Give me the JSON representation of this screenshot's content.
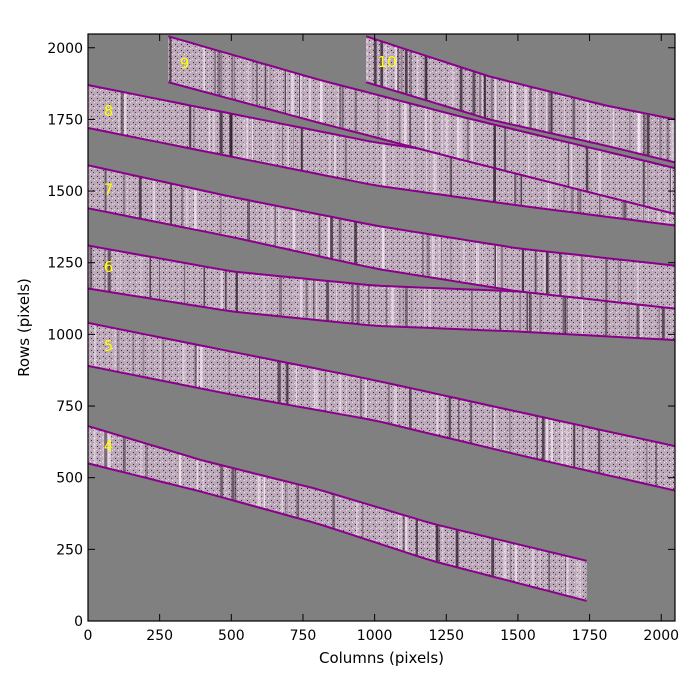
{
  "chart_data": {
    "type": "image",
    "title": "",
    "xlabel": "Columns (pixels)",
    "ylabel": "Rows (pixels)",
    "xlim": [
      0,
      2048
    ],
    "ylim": [
      0,
      2048
    ],
    "xticks": [
      0,
      250,
      500,
      750,
      1000,
      1250,
      1500,
      1750,
      2000
    ],
    "yticks": [
      0,
      250,
      500,
      750,
      1000,
      1250,
      1500,
      1750,
      2000
    ],
    "grid": false,
    "background_color": "#808080",
    "outline_color": "#8B008B",
    "label_color": "#FFFF00",
    "orders": [
      {
        "label": "4",
        "x_range": [
          0,
          1740
        ],
        "lower_edge": [
          [
            0,
            550
          ],
          [
            400,
            450
          ],
          [
            800,
            340
          ],
          [
            1200,
            210
          ],
          [
            1740,
            70
          ]
        ],
        "upper_edge": [
          [
            0,
            680
          ],
          [
            400,
            560
          ],
          [
            800,
            460
          ],
          [
            1200,
            340
          ],
          [
            1740,
            210
          ]
        ],
        "label_pos": [
          55,
          610
        ]
      },
      {
        "label": "5",
        "x_range": [
          0,
          2048
        ],
        "lower_edge": [
          [
            0,
            890
          ],
          [
            500,
            790
          ],
          [
            1000,
            700
          ],
          [
            1500,
            580
          ],
          [
            2048,
            455
          ]
        ],
        "upper_edge": [
          [
            0,
            1040
          ],
          [
            500,
            940
          ],
          [
            1000,
            840
          ],
          [
            1500,
            730
          ],
          [
            2048,
            610
          ]
        ],
        "label_pos": [
          55,
          960
        ]
      },
      {
        "label": "6",
        "x_range": [
          0,
          2048
        ],
        "lower_edge": [
          [
            0,
            1160
          ],
          [
            500,
            1080
          ],
          [
            1000,
            1030
          ],
          [
            1500,
            1010
          ],
          [
            2048,
            980
          ]
        ],
        "upper_edge": [
          [
            0,
            1310
          ],
          [
            500,
            1220
          ],
          [
            1000,
            1170
          ],
          [
            1500,
            1150
          ],
          [
            2048,
            1120
          ]
        ],
        "label_pos": [
          55,
          1235
        ]
      },
      {
        "label": "7",
        "x_range": [
          0,
          2048
        ],
        "lower_edge": [
          [
            0,
            1440
          ],
          [
            500,
            1340
          ],
          [
            1000,
            1230
          ],
          [
            1500,
            1150
          ],
          [
            2048,
            1090
          ]
        ],
        "upper_edge": [
          [
            0,
            1590
          ],
          [
            500,
            1480
          ],
          [
            1000,
            1380
          ],
          [
            1500,
            1300
          ],
          [
            2048,
            1240
          ]
        ],
        "label_pos": [
          55,
          1505
        ]
      },
      {
        "label": "8",
        "x_range": [
          0,
          2048
        ],
        "lower_edge": [
          [
            0,
            1720
          ],
          [
            500,
            1620
          ],
          [
            1000,
            1520
          ],
          [
            1500,
            1450
          ],
          [
            2048,
            1380
          ]
        ],
        "upper_edge": [
          [
            0,
            1870
          ],
          [
            500,
            1770
          ],
          [
            1000,
            1670
          ],
          [
            1500,
            1600
          ],
          [
            2048,
            1540
          ]
        ],
        "label_pos": [
          55,
          1780
        ]
      },
      {
        "label": "9",
        "x_range": [
          280,
          2048
        ],
        "lower_edge": [
          [
            280,
            1880
          ],
          [
            800,
            1740
          ],
          [
            1300,
            1610
          ],
          [
            2048,
            1420
          ]
        ],
        "upper_edge": [
          [
            280,
            2040
          ],
          [
            800,
            1890
          ],
          [
            1300,
            1760
          ],
          [
            2048,
            1580
          ]
        ],
        "label_pos": [
          320,
          1945
        ]
      },
      {
        "label": "10",
        "x_range": [
          970,
          2048
        ],
        "lower_edge": [
          [
            970,
            1880
          ],
          [
            1400,
            1750
          ],
          [
            1800,
            1660
          ],
          [
            2048,
            1600
          ]
        ],
        "upper_edge": [
          [
            970,
            2040
          ],
          [
            1400,
            1900
          ],
          [
            1800,
            1800
          ],
          [
            2048,
            1750
          ]
        ],
        "label_pos": [
          1010,
          1950
        ]
      }
    ]
  }
}
